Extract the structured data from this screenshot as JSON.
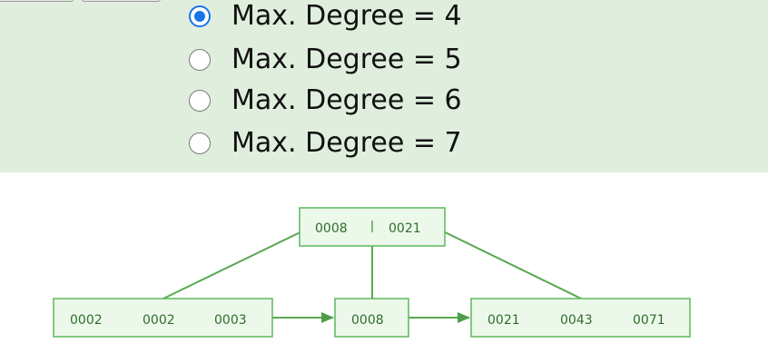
{
  "radio_options": [
    {
      "label": "Max. Degree = 4",
      "checked": true
    },
    {
      "label": "Max. Degree = 5",
      "checked": false
    },
    {
      "label": "Max. Degree = 6",
      "checked": false
    },
    {
      "label": "Max. Degree = 7",
      "checked": false
    }
  ],
  "tree": {
    "root": {
      "keys": [
        "0008",
        "0021"
      ]
    },
    "leaves": [
      {
        "keys": [
          "0002",
          "0002",
          "0003"
        ]
      },
      {
        "keys": [
          "0008"
        ]
      },
      {
        "keys": [
          "0021",
          "0043",
          "0071"
        ]
      }
    ]
  },
  "colors": {
    "panel_background": "#dfeedd",
    "radio_selected": "#1a73e8",
    "node_fill": "#ecf8ea",
    "node_stroke": "#5cb85c",
    "edge": "#5aa852",
    "key_text": "#2f6d2c"
  }
}
